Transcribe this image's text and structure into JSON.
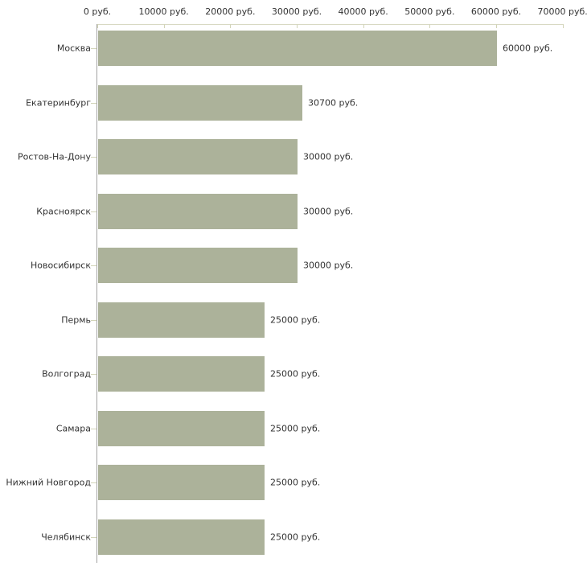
{
  "chart_data": {
    "type": "bar",
    "orientation": "horizontal",
    "title": "",
    "xlabel": "",
    "ylabel": "",
    "unit": "руб.",
    "categories": [
      "Москва",
      "Екатеринбург",
      "Ростов-На-Дону",
      "Красноярск",
      "Новосибирск",
      "Пермь",
      "Волгоград",
      "Самара",
      "Нижний Новгород",
      "Челябинск"
    ],
    "values": [
      60000,
      30700,
      30000,
      30000,
      30000,
      25000,
      25000,
      25000,
      25000,
      25000
    ],
    "value_labels": [
      "60000 руб.",
      "30700 руб.",
      "30000 руб.",
      "30000 руб.",
      "30000 руб.",
      "25000 руб.",
      "25000 руб.",
      "25000 руб.",
      "25000 руб.",
      "25000 руб."
    ],
    "x_ticks": [
      0,
      10000,
      20000,
      30000,
      40000,
      50000,
      60000,
      70000
    ],
    "x_tick_labels": [
      "0 руб.",
      "10000 руб.",
      "20000 руб.",
      "30000 руб.",
      "40000 руб.",
      "50000 руб.",
      "60000 руб.",
      "70000 руб."
    ],
    "xlim": [
      0,
      70000
    ],
    "grid": false,
    "legend": false,
    "colors": {
      "bar": "#acb29a",
      "axis_line": "#d8d9c3",
      "axis_tick": "#d2d4b8",
      "baseline": "#a3a3a3",
      "text": "#333333",
      "background": "#ffffff"
    }
  }
}
